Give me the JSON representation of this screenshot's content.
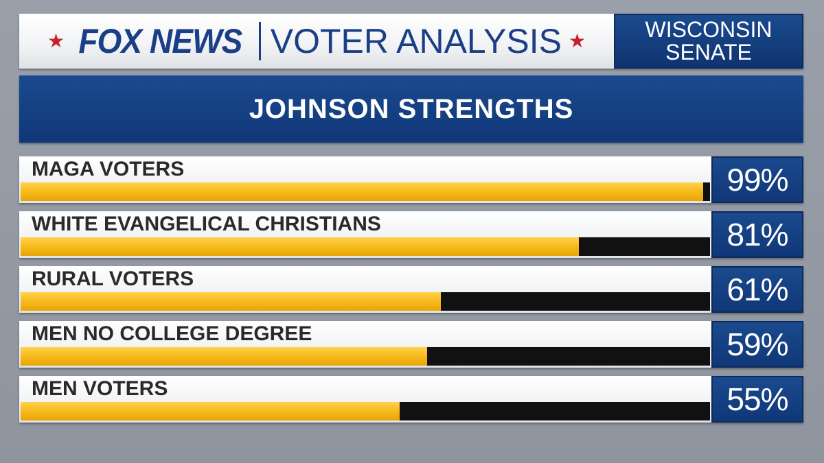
{
  "header": {
    "logo": "FOX NEWS",
    "title": "VOTER ANALYSIS",
    "race_line1": "WISCONSIN",
    "race_line2": "SENATE",
    "star_color": "#c8202f"
  },
  "chart_data": {
    "type": "bar",
    "title": "JOHNSON STRENGTHS",
    "orientation": "horizontal",
    "categories": [
      "MAGA VOTERS",
      "WHITE EVANGELICAL CHRISTIANS",
      "RURAL VOTERS",
      "MEN NO COLLEGE DEGREE",
      "MEN VOTERS"
    ],
    "values": [
      99,
      81,
      61,
      59,
      55
    ],
    "value_labels": [
      "99%",
      "81%",
      "61%",
      "59%",
      "55%"
    ],
    "xlim": [
      0,
      100
    ],
    "grid": false,
    "colors": {
      "bar": "#f4b515",
      "track": "#111111",
      "panel": "#1a4a8e"
    }
  }
}
